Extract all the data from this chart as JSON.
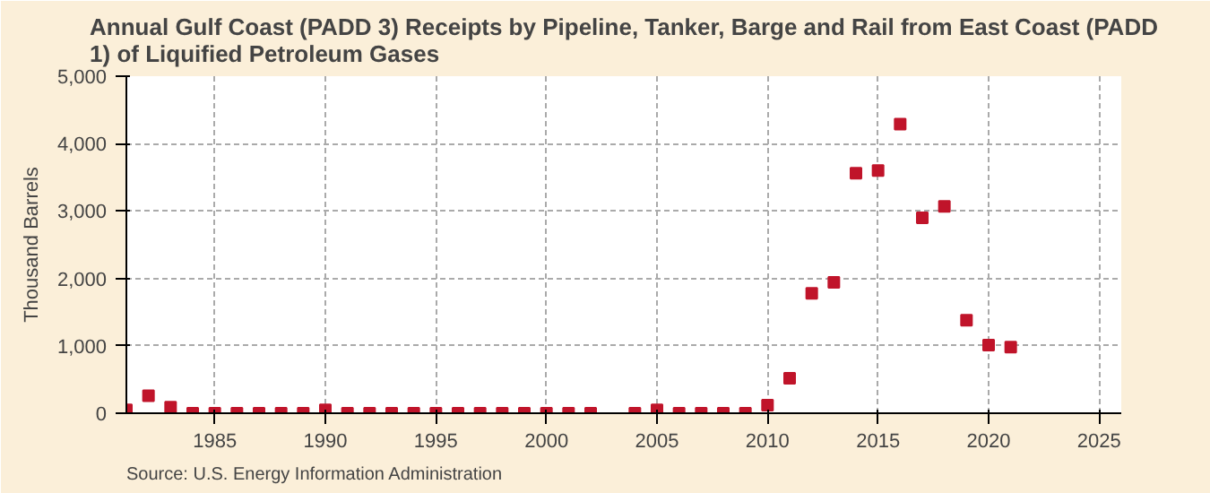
{
  "chart_data": {
    "type": "scatter",
    "title": "Annual Gulf Coast (PADD 3) Receipts by Pipeline, Tanker, Barge and Rail from East Coast (PADD 1) of Liquified Petroleum Gases",
    "ylabel": "Thousand Barrels",
    "annotations": [
      "Source: U.S. Energy Information Administration"
    ],
    "x": [
      1981,
      1982,
      1983,
      1984,
      1985,
      1986,
      1987,
      1988,
      1989,
      1990,
      1991,
      1992,
      1993,
      1994,
      1995,
      1996,
      1997,
      1998,
      1999,
      2000,
      2001,
      2002,
      2004,
      2005,
      2006,
      2007,
      2008,
      2009,
      2010,
      2011,
      2012,
      2013,
      2014,
      2015,
      2016,
      2017,
      2018,
      2019,
      2020,
      2021
    ],
    "series": [
      {
        "color": "#c0142a",
        "values": [
          50,
          260,
          90,
          0,
          0,
          0,
          0,
          0,
          0,
          50,
          0,
          0,
          0,
          0,
          0,
          0,
          0,
          0,
          0,
          0,
          0,
          0,
          0,
          50,
          0,
          0,
          0,
          0,
          120,
          520,
          1780,
          1940,
          3560,
          3600,
          4290,
          2900,
          3070,
          1380,
          1010,
          980
        ]
      }
    ],
    "xlim": [
      1981,
      2026
    ],
    "xticks": [
      1985,
      1990,
      1995,
      2000,
      2005,
      2010,
      2015,
      2020,
      2025
    ],
    "ylim": [
      0,
      5000
    ],
    "yticks": [
      {
        "value": 0,
        "label": "0"
      },
      {
        "value": 1000,
        "label": "1,000"
      },
      {
        "value": 2000,
        "label": "2,000"
      },
      {
        "value": 3000,
        "label": "3,000"
      },
      {
        "value": 4000,
        "label": "4,000"
      },
      {
        "value": 5000,
        "label": "5,000"
      }
    ],
    "grid": true,
    "marker": "square"
  }
}
